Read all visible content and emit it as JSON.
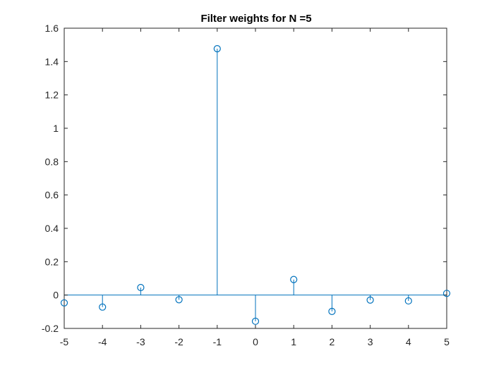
{
  "chart_data": {
    "type": "stem",
    "title": "Filter weights for N =5",
    "xlabel": "",
    "ylabel": "",
    "xlim": [
      -5,
      5
    ],
    "ylim": [
      -0.2,
      1.6
    ],
    "grid": false,
    "x_ticks": [
      -5,
      -4,
      -3,
      -2,
      -1,
      0,
      1,
      2,
      3,
      4,
      5
    ],
    "x_tick_labels": [
      "-5",
      "-4",
      "-3",
      "-2",
      "-1",
      "0",
      "1",
      "2",
      "3",
      "4",
      "5"
    ],
    "y_ticks": [
      -0.2,
      0,
      0.2,
      0.4,
      0.6,
      0.8,
      1,
      1.2,
      1.4,
      1.6
    ],
    "y_tick_labels": [
      "-0.2",
      "0",
      "0.2",
      "0.4",
      "0.6",
      "0.8",
      "1",
      "1.2",
      "1.4",
      "1.6"
    ],
    "series": [
      {
        "x": [
          -5,
          -4,
          -3,
          -2,
          -1,
          0,
          1,
          2,
          3,
          4,
          5
        ],
        "y": [
          -0.047,
          -0.072,
          0.045,
          -0.028,
          1.477,
          -0.157,
          0.093,
          -0.098,
          -0.03,
          -0.035,
          0.01
        ],
        "color": "#0072BD",
        "marker": "open-circle"
      }
    ]
  }
}
